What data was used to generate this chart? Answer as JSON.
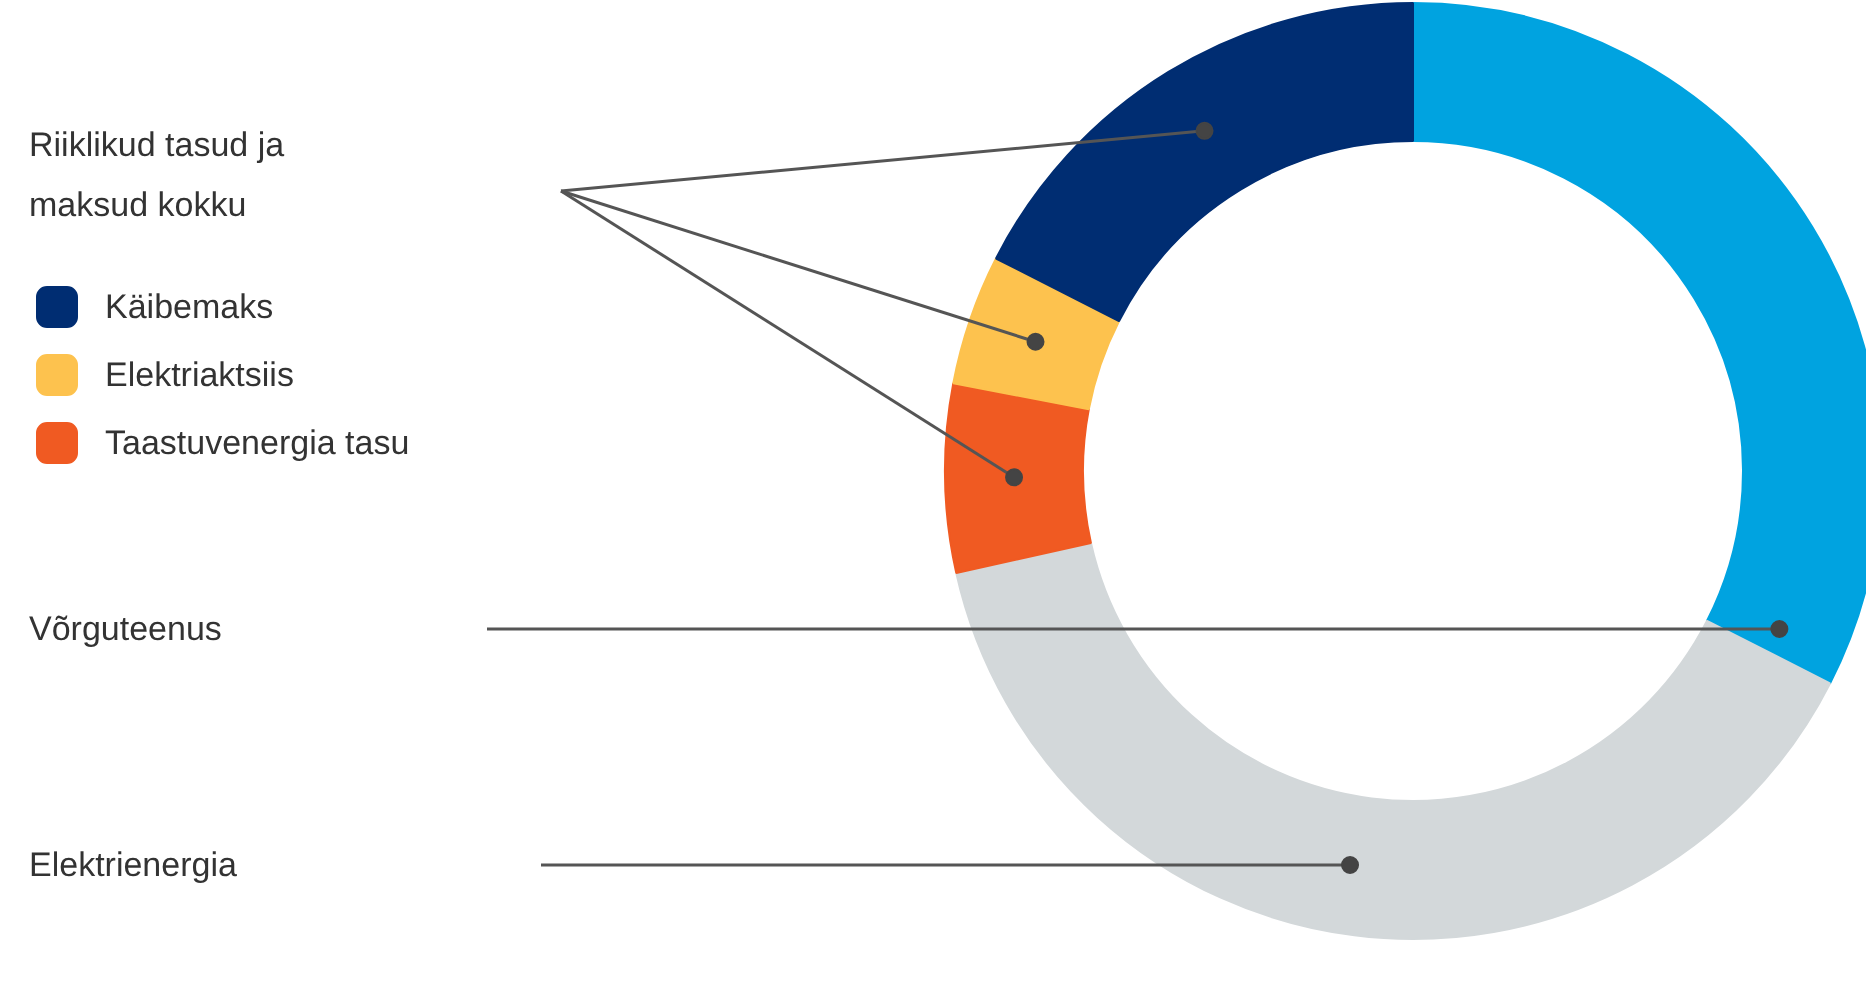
{
  "chart_data": {
    "type": "donut",
    "categories": [
      null,
      null,
      "Taastuvenergia tasu",
      "Elektriaktsiis",
      "Käibemaks"
    ],
    "values": [
      32.5,
      39,
      6.5,
      4.5,
      17.5
    ],
    "colors": [
      "#00a3e0",
      "#d3d8da",
      "#f05a22",
      "#fdc24e",
      "#002d72"
    ],
    "legend": "left",
    "annotations": [
      "Riiklikud tasud ja maksud kokku",
      {
        "text": "Võrguteenus"
      },
      {
        "text": "Elektrienergia"
      }
    ]
  }
}
